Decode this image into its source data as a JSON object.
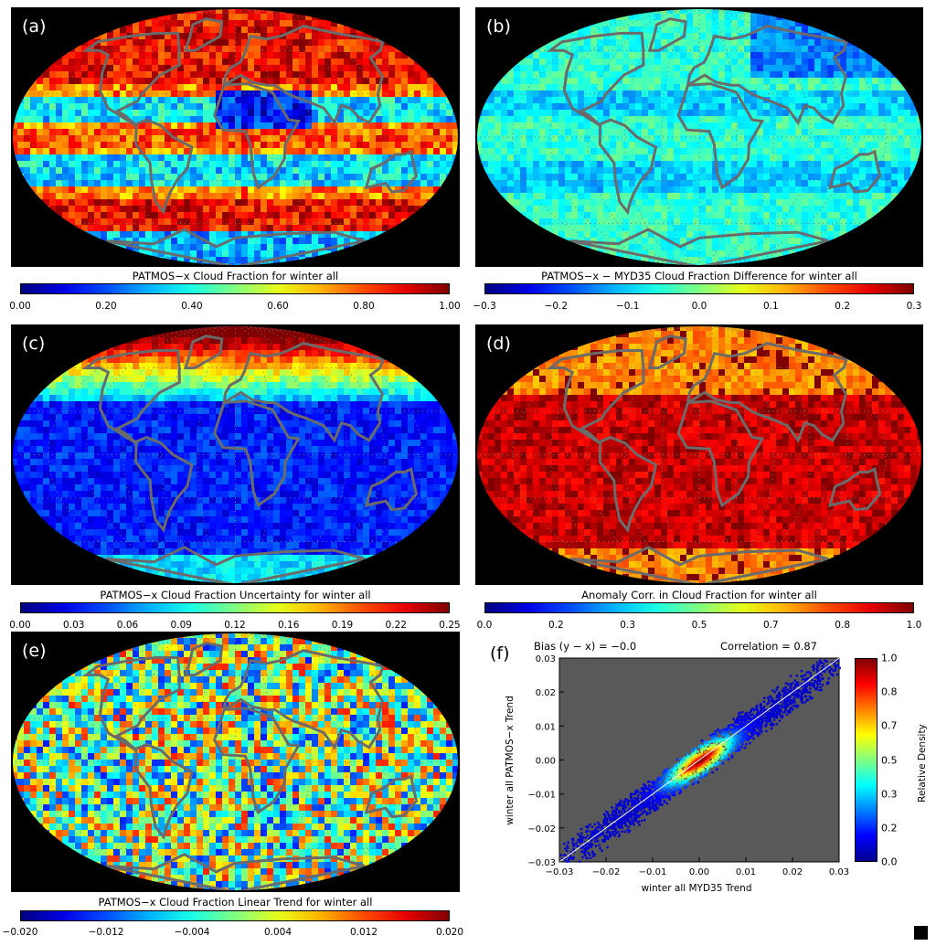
{
  "panels": [
    {
      "id": "a",
      "label": "(a)",
      "caption": "PATMOS−x Cloud Fraction for winter all",
      "ticks": [
        "0.00",
        "0.20",
        "0.40",
        "0.60",
        "0.80",
        "1.00"
      ],
      "colormap": "jet",
      "pattern": "cloud"
    },
    {
      "id": "b",
      "label": "(b)",
      "caption": "PATMOS−x − MYD35 Cloud Fraction Difference for winter all",
      "ticks": [
        "−0.3",
        "−0.2",
        "−0.1",
        "0.0",
        "0.1",
        "0.2",
        "0.3"
      ],
      "colormap": "jet",
      "pattern": "diff"
    },
    {
      "id": "c",
      "label": "(c)",
      "caption": "PATMOS−x Cloud Fraction Uncertainty for winter all",
      "ticks": [
        "0.00",
        "0.03",
        "0.06",
        "0.09",
        "0.12",
        "0.16",
        "0.19",
        "0.22",
        "0.25"
      ],
      "colormap": "jet",
      "pattern": "uncert"
    },
    {
      "id": "d",
      "label": "(d)",
      "caption": "Anomaly Corr. in Cloud Fraction for winter all",
      "ticks": [
        "0.0",
        "0.2",
        "0.3",
        "0.5",
        "0.7",
        "0.8",
        "1.0"
      ],
      "colormap": "jet",
      "pattern": "corr"
    },
    {
      "id": "e",
      "label": "(e)",
      "caption": "PATMOS−x Cloud Fraction Linear Trend for winter all",
      "ticks": [
        "−0.020",
        "−0.012",
        "−0.004",
        "0.004",
        "0.012",
        "0.020"
      ],
      "colormap": "jet",
      "pattern": "trend"
    }
  ],
  "scatter": {
    "label": "(f)",
    "bias_text": "Bias (y − x) =  −0.0",
    "corr_text": "Correlation =   0.87",
    "xlabel": "winter all MYD35 Trend",
    "ylabel": "winter all PATMOS−x Trend",
    "ticks": [
      "−0.03",
      "−0.02",
      "−0.01",
      "0.00",
      "0.01",
      "0.02",
      "0.03"
    ],
    "colorbar_label": "Relative Density",
    "colorbar_ticks": [
      "0.0",
      "0.2",
      "0.3",
      "0.5",
      "0.7",
      "0.8",
      "1.0"
    ]
  },
  "chart_data": {
    "type": "heatmap",
    "title": "",
    "subtitle_bias": "Bias (y − x) =  −0.0",
    "subtitle_correlation": "Correlation =   0.87",
    "xlabel": "winter all MYD35 Trend",
    "ylabel": "winter all PATMOS−x Trend",
    "xlim": [
      -0.03,
      0.03
    ],
    "ylim": [
      -0.03,
      0.03
    ],
    "bias": -0.0,
    "correlation": 0.87,
    "colorbar": {
      "label": "Relative Density",
      "range": [
        0.0,
        1.0
      ]
    },
    "one_to_one_line": true
  },
  "colors": {
    "map_background": "#000000",
    "coastline": "#6b6b6b",
    "scatter_background": "#595959"
  }
}
